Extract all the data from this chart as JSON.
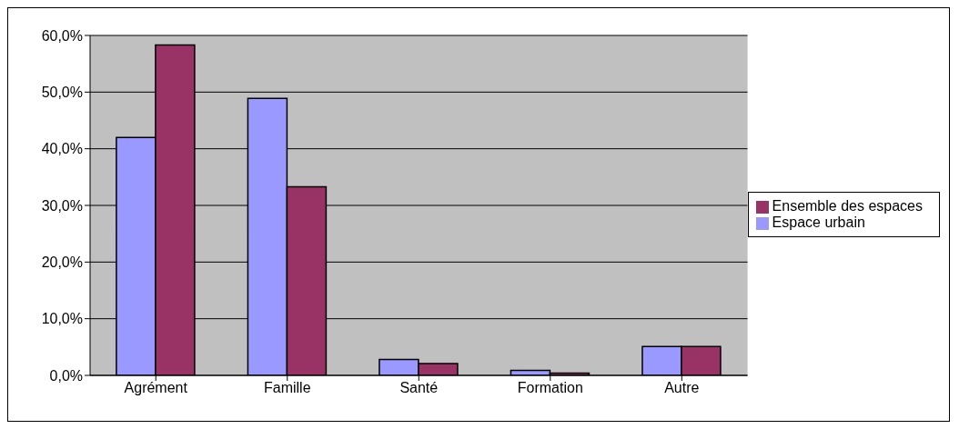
{
  "chart_data": {
    "type": "bar",
    "categories": [
      "Agrément",
      "Famille",
      "Santé",
      "Formation",
      "Autre"
    ],
    "series": [
      {
        "name": "Espace urbain",
        "color": "#9999ff",
        "values": [
          42,
          48.9,
          2.8,
          0.9,
          5.1
        ]
      },
      {
        "name": "Ensemble des espaces",
        "color": "#993366",
        "values": [
          58.3,
          33.3,
          2.1,
          0.4,
          5.1
        ]
      }
    ],
    "ylim": [
      0,
      60
    ],
    "yticks": [
      {
        "value": 0,
        "label": "0,0%"
      },
      {
        "value": 10,
        "label": "10,0%"
      },
      {
        "value": 20,
        "label": "20,0%"
      },
      {
        "value": 30,
        "label": "30,0%"
      },
      {
        "value": 40,
        "label": "40,0%"
      },
      {
        "value": 50,
        "label": "50,0%"
      },
      {
        "value": 60,
        "label": "60,0%"
      }
    ],
    "grid": "y",
    "legend": "right"
  }
}
